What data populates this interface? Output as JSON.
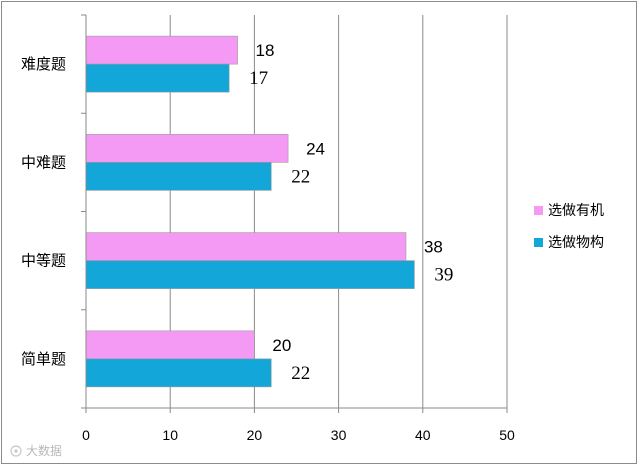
{
  "chart_data": {
    "type": "bar",
    "orientation": "horizontal",
    "categories": [
      "难度题",
      "中难题",
      "中等题",
      "简单题"
    ],
    "series": [
      {
        "name": "选做有机",
        "color": "#f49af4",
        "values": [
          18,
          24,
          38,
          20
        ]
      },
      {
        "name": "选做物构",
        "color": "#13a7d9",
        "values": [
          17,
          22,
          39,
          22
        ]
      }
    ],
    "xlim": [
      0,
      50
    ],
    "xticks": [
      0,
      10,
      20,
      30,
      40,
      50
    ],
    "grid": "vertical",
    "legend": "right",
    "title": "",
    "xlabel": "",
    "ylabel": ""
  },
  "watermark": "大数据"
}
